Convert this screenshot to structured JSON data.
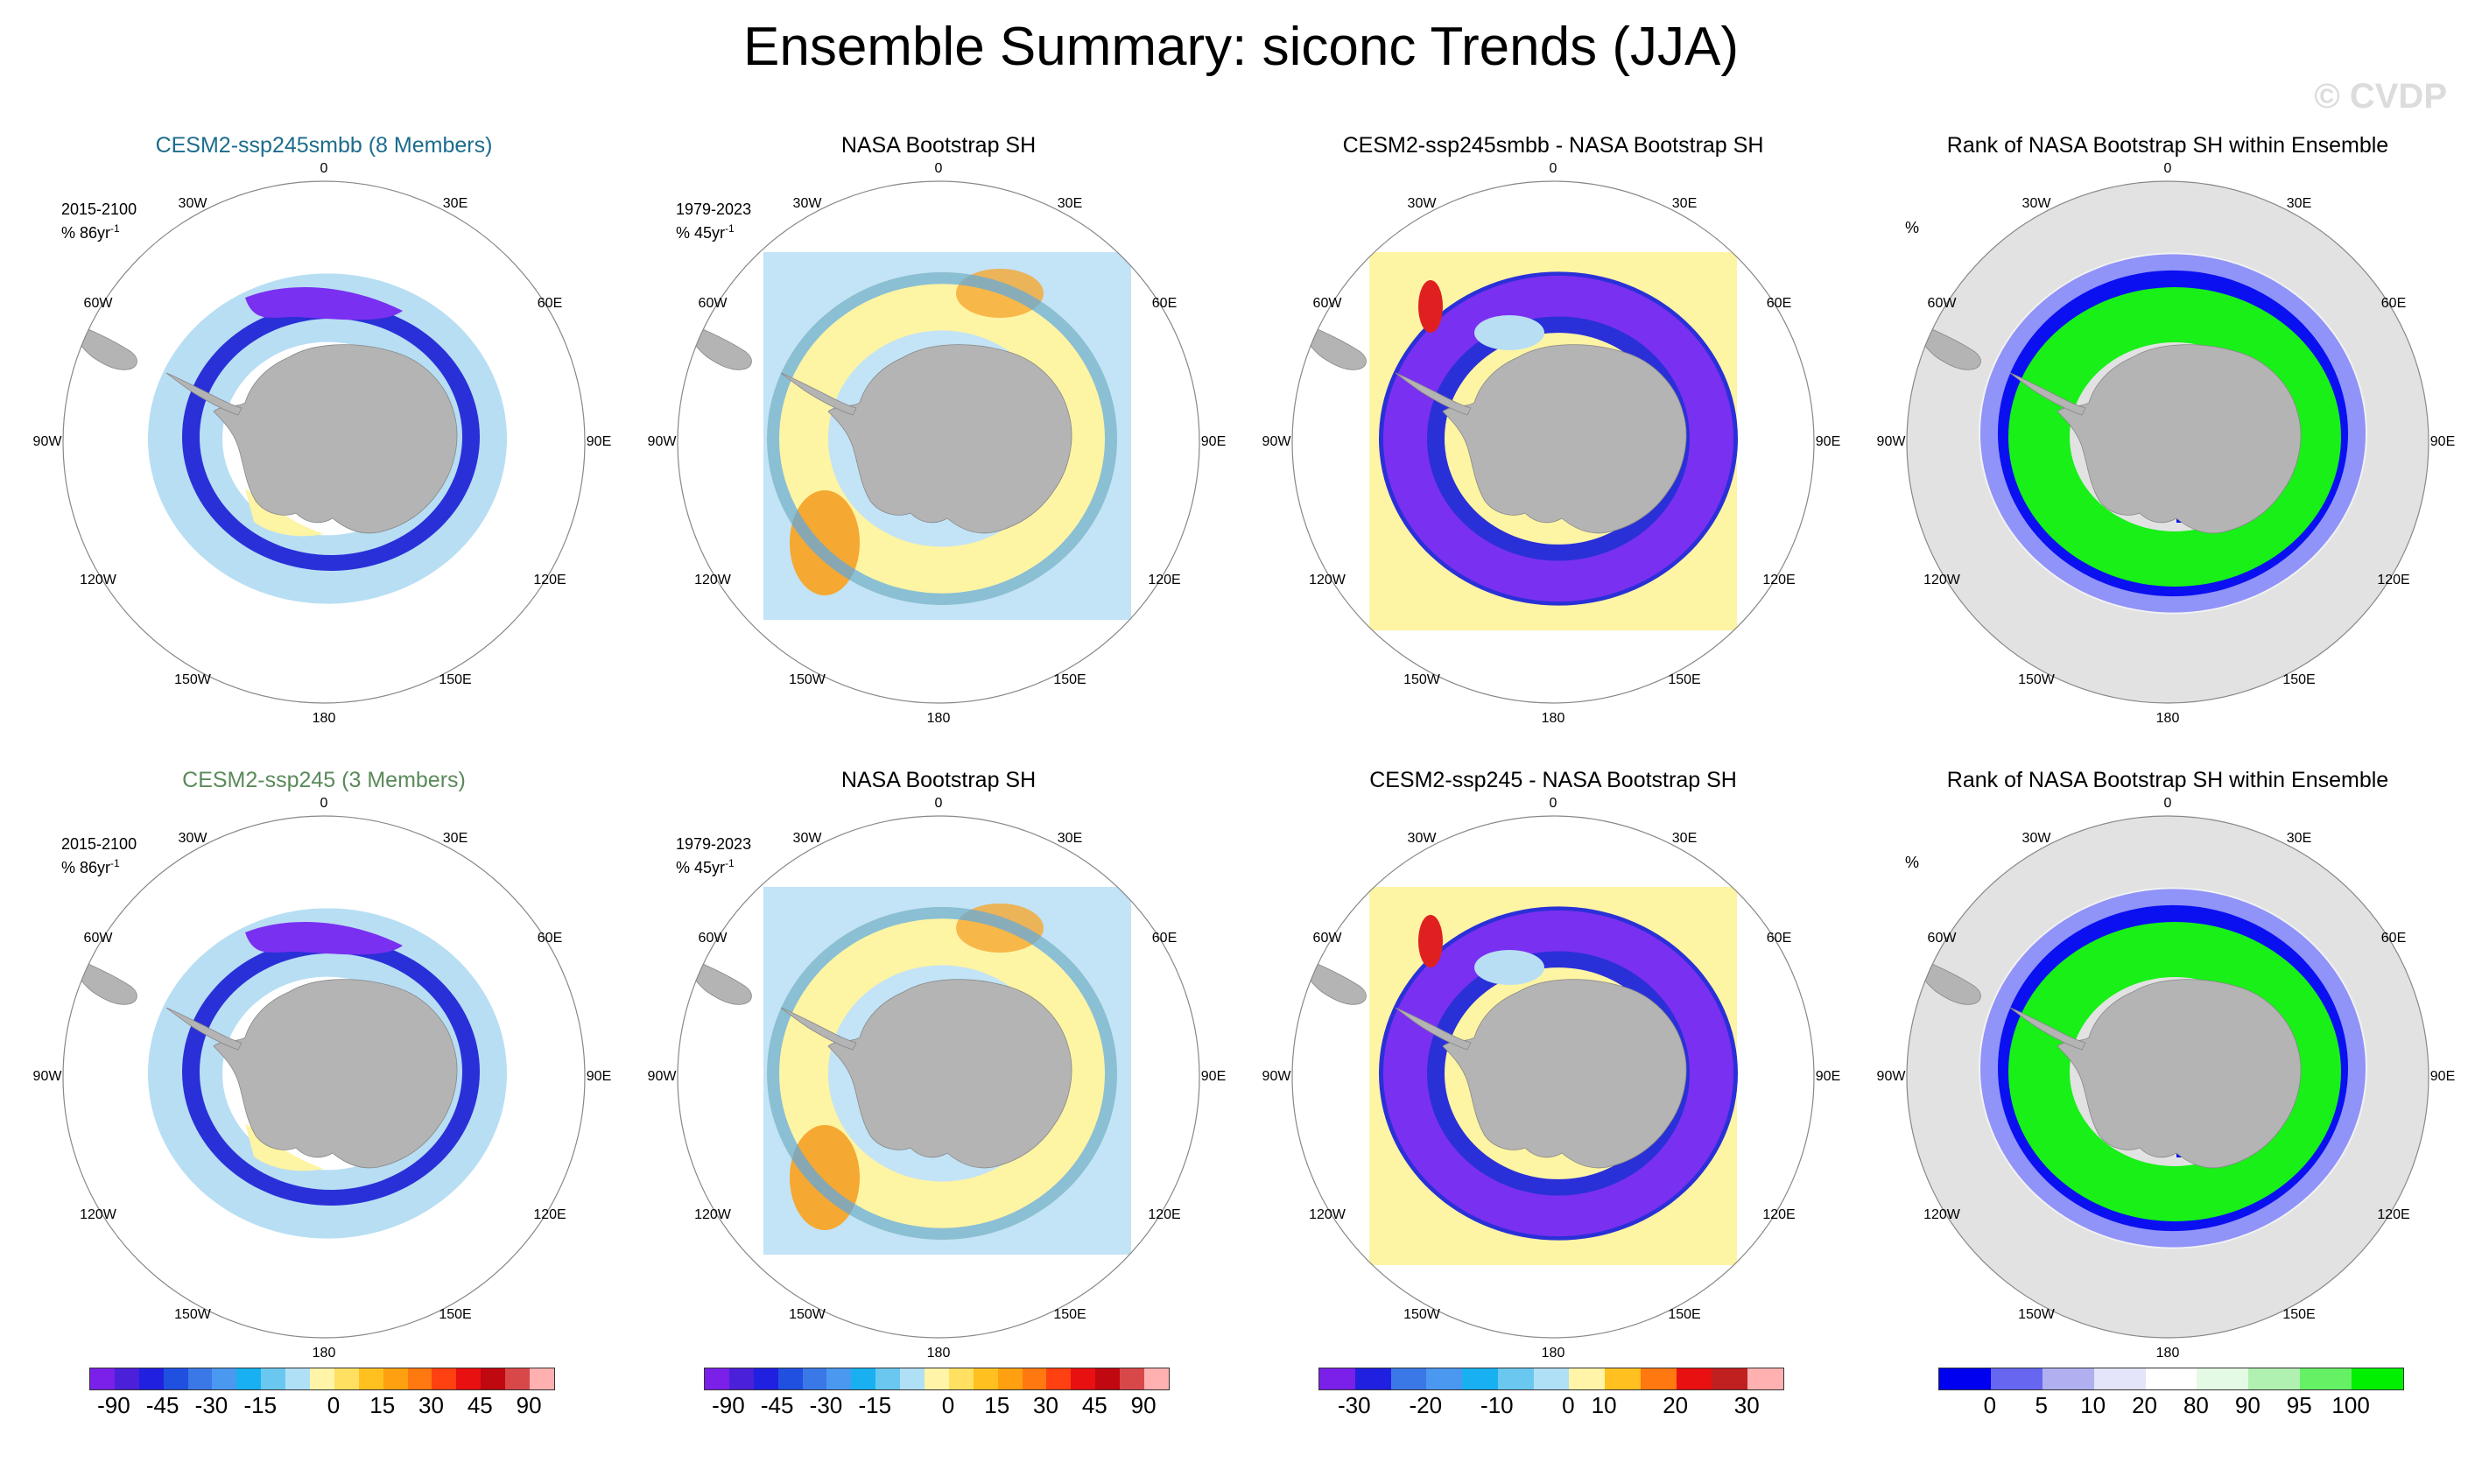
{
  "title": "Ensemble Summary: siconc Trends (JJA)",
  "copyright": "© CVDP",
  "longitude_labels": [
    "0",
    "30E",
    "60E",
    "90E",
    "120E",
    "150E",
    "180",
    "150W",
    "120W",
    "90W",
    "60W",
    "30W"
  ],
  "rows": [
    {
      "panels": [
        {
          "title": "CESM2-ssp245smbb (8 Members)",
          "title_style": "model-a",
          "period": "2015-2100",
          "unit": "% 86yr",
          "unit_sup": "-1",
          "kind": "model"
        },
        {
          "title": "NASA Bootstrap SH",
          "title_style": "",
          "period": "1979-2023",
          "unit": "% 45yr",
          "unit_sup": "-1",
          "kind": "obs"
        },
        {
          "title": "CESM2-ssp245smbb - NASA Bootstrap SH",
          "title_style": "",
          "period": "",
          "unit": "",
          "unit_sup": "",
          "kind": "diff"
        },
        {
          "title": "Rank of NASA Bootstrap SH within Ensemble",
          "title_style": "",
          "period": "",
          "unit": "%",
          "unit_sup": "",
          "kind": "rank"
        }
      ]
    },
    {
      "panels": [
        {
          "title": "CESM2-ssp245 (3 Members)",
          "title_style": "model-b",
          "period": "2015-2100",
          "unit": "% 86yr",
          "unit_sup": "-1",
          "kind": "model"
        },
        {
          "title": "NASA Bootstrap SH",
          "title_style": "",
          "period": "1979-2023",
          "unit": "% 45yr",
          "unit_sup": "-1",
          "kind": "obs"
        },
        {
          "title": "CESM2-ssp245 - NASA Bootstrap SH",
          "title_style": "",
          "period": "",
          "unit": "",
          "unit_sup": "",
          "kind": "diff"
        },
        {
          "title": "Rank of NASA Bootstrap SH within Ensemble",
          "title_style": "",
          "period": "",
          "unit": "%",
          "unit_sup": "",
          "kind": "rank"
        }
      ]
    }
  ],
  "colorbars": [
    {
      "colors": [
        "#7a20e8",
        "#4a20d8",
        "#2020e0",
        "#2050e0",
        "#3a78e8",
        "#4a98f0",
        "#18b0f0",
        "#6ac8f0",
        "#b0e0f6",
        "#fff4a8",
        "#ffe060",
        "#ffc020",
        "#ffa010",
        "#ff7810",
        "#ff4010",
        "#e81010",
        "#c00810",
        "#d84848",
        "#ffb0b0"
      ],
      "labels": [
        "-90",
        "-45",
        "-30",
        "-15",
        "0",
        "15",
        "30",
        "45",
        "90"
      ]
    },
    {
      "colors": [
        "#7a20e8",
        "#4a20d8",
        "#2020e0",
        "#2050e0",
        "#3a78e8",
        "#4a98f0",
        "#18b0f0",
        "#6ac8f0",
        "#b0e0f6",
        "#fff4a8",
        "#ffe060",
        "#ffc020",
        "#ffa010",
        "#ff7810",
        "#ff4010",
        "#e81010",
        "#c00810",
        "#d84848",
        "#ffb0b0"
      ],
      "labels": [
        "-90",
        "-45",
        "-30",
        "-15",
        "0",
        "15",
        "30",
        "45",
        "90"
      ]
    },
    {
      "colors": [
        "#7a20e8",
        "#2020e0",
        "#3a78e8",
        "#4a98f0",
        "#18b0f0",
        "#6ac8f0",
        "#b0e0f6",
        "#fff4a8",
        "#ffc020",
        "#ff7810",
        "#e81010",
        "#c02020",
        "#ffb0b0"
      ],
      "labels": [
        "-30",
        "-20",
        "-10",
        "0",
        "10",
        "20",
        "30"
      ]
    },
    {
      "colors": [
        "#0000f0",
        "#6666f0",
        "#b0b0f0",
        "#e4e4fa",
        "#ffffff",
        "#e4fae4",
        "#b0f0b0",
        "#66f066",
        "#00f000"
      ],
      "labels": [
        "0",
        "5",
        "10",
        "20",
        "80",
        "90",
        "95",
        "100"
      ]
    }
  ],
  "palette": {
    "land": "#b4b4b4",
    "ocean_rank": "#e2e2e2",
    "blue_dark": "#2a30d8",
    "purple": "#7a30f0",
    "light_blue": "#b8def4",
    "mid_blue": "#58a8e8",
    "yellow": "#fdf4a4",
    "orange": "#f5a832",
    "red": "#e02020",
    "green": "#18f018",
    "rank_blue": "#0a10f0"
  }
}
